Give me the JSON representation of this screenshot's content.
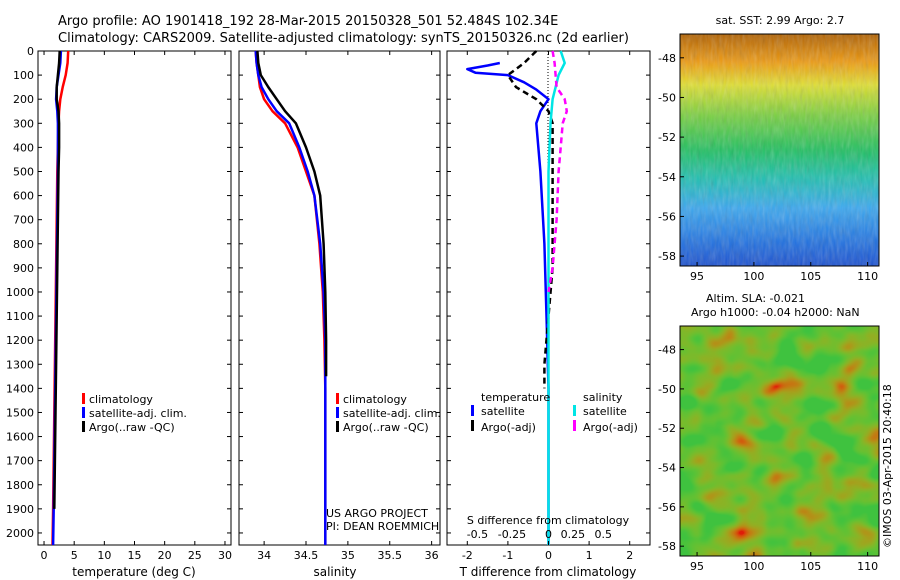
{
  "title_lines": [
    "Argo profile: AO 1901418_192 28-Mar-2015 20150328_501 52.484S 102.34E",
    "Climatology: CARS2009. Satellite-adjusted climatology: synTS_20150326.nc (2d earlier)"
  ],
  "colors": {
    "climatology": "#ff0000",
    "satellite": "#0000ff",
    "argo": "#000000",
    "salinity_satellite": "#00e5e5",
    "salinity_argo": "#ff00ff"
  },
  "depth_axis": {
    "ylim": [
      0,
      2050
    ],
    "ticks": [
      "0",
      "100",
      "200",
      "300",
      "400",
      "500",
      "600",
      "700",
      "800",
      "900",
      "1000",
      "1100",
      "1200",
      "1300",
      "1400",
      "1500",
      "1600",
      "1700",
      "1800",
      "1900",
      "2000"
    ]
  },
  "chart_data": [
    {
      "type": "line",
      "id": "temperature",
      "xlabel": "temperature (deg C)",
      "xlim": [
        -1,
        31
      ],
      "xticks": [
        "0",
        "5",
        "10",
        "15",
        "20",
        "25",
        "30"
      ],
      "legend": [
        "climatology",
        "satellite-adj. clim.",
        "Argo(..raw -QC)"
      ],
      "series": [
        {
          "name": "climatology",
          "color": "#ff0000",
          "x": [
            4.0,
            3.9,
            3.6,
            3.1,
            2.7,
            2.5,
            2.4,
            2.3,
            2.2,
            2.1,
            2.0,
            1.9,
            1.8,
            1.7,
            1.6,
            1.5,
            1.4
          ],
          "y": [
            0,
            50,
            100,
            150,
            200,
            250,
            300,
            400,
            500,
            700,
            900,
            1100,
            1300,
            1500,
            1700,
            1900,
            2050
          ]
        },
        {
          "name": "satellite-adj. clim.",
          "color": "#0000ff",
          "x": [
            2.8,
            2.7,
            2.4,
            2.1,
            2.0,
            2.2,
            2.3,
            2.3,
            2.3,
            2.2,
            2.1,
            2.0,
            1.9,
            1.8,
            1.7,
            1.6,
            1.5
          ],
          "y": [
            0,
            50,
            100,
            150,
            200,
            250,
            300,
            400,
            500,
            700,
            900,
            1100,
            1300,
            1500,
            1700,
            1900,
            2050
          ]
        },
        {
          "name": "Argo(..raw -QC)",
          "color": "#000000",
          "x": [
            2.6,
            2.5,
            2.3,
            2.1,
            2.1,
            2.4,
            2.5,
            2.5,
            2.4,
            2.3,
            2.2,
            2.1,
            2.0,
            1.9,
            1.8,
            1.7
          ],
          "y": [
            0,
            50,
            100,
            150,
            200,
            250,
            300,
            400,
            500,
            700,
            900,
            1100,
            1300,
            1500,
            1700,
            1900
          ]
        }
      ]
    },
    {
      "type": "line",
      "id": "salinity",
      "xlabel": "salinity",
      "xlim": [
        33.7,
        36.1
      ],
      "xticks": [
        "34",
        "34.5",
        "35",
        "35.5",
        "36"
      ],
      "legend": [
        "climatology",
        "satellite-adj. clim.",
        "Argo(..raw -QC)"
      ],
      "series": [
        {
          "name": "climatology",
          "color": "#ff0000",
          "x": [
            33.9,
            33.91,
            33.93,
            33.95,
            34.0,
            34.1,
            34.25,
            34.4,
            34.5,
            34.6,
            34.66,
            34.7,
            34.72,
            34.73,
            34.73,
            34.73,
            34.73,
            34.73
          ],
          "y": [
            0,
            50,
            100,
            150,
            200,
            250,
            300,
            400,
            500,
            600,
            800,
            1000,
            1200,
            1400,
            1600,
            1800,
            1900,
            2050
          ]
        },
        {
          "name": "satellite-adj. clim.",
          "color": "#0000ff",
          "x": [
            33.9,
            33.91,
            33.93,
            33.97,
            34.05,
            34.15,
            34.3,
            34.42,
            34.52,
            34.6,
            34.67,
            34.71,
            34.73,
            34.73,
            34.73,
            34.73,
            34.73,
            34.73
          ],
          "y": [
            0,
            50,
            100,
            150,
            200,
            250,
            300,
            400,
            500,
            600,
            800,
            1000,
            1200,
            1400,
            1600,
            1800,
            1900,
            2050
          ]
        },
        {
          "name": "Argo(..raw -QC)",
          "color": "#000000",
          "x": [
            33.92,
            33.93,
            33.96,
            34.05,
            34.15,
            34.25,
            34.38,
            34.5,
            34.6,
            34.67,
            34.71,
            34.73,
            34.74,
            34.74
          ],
          "y": [
            0,
            50,
            100,
            150,
            200,
            250,
            300,
            400,
            500,
            600,
            800,
            1000,
            1200,
            1350
          ]
        }
      ],
      "annotation": [
        "US ARGO PROJECT",
        "PI: DEAN ROEMMICH"
      ]
    },
    {
      "type": "line",
      "id": "difference",
      "xlabel": "T difference from climatology",
      "xlabel_top": "S difference from climatology",
      "xlim": [
        -2.5,
        2.5
      ],
      "xticks_bottom": [
        "-2",
        "-1",
        "0",
        "1",
        "2"
      ],
      "xticks_top": [
        {
          "label": "-0.5",
          "pos": -1.75
        },
        {
          "label": "-0.25",
          "pos": -0.9
        },
        {
          "label": "0",
          "pos": 0
        },
        {
          "label": "0.25",
          "pos": 0.6
        },
        {
          "label": "0.5",
          "pos": 1.35
        }
      ],
      "legend_groups": [
        {
          "title": "temperature",
          "items": [
            "satellite",
            "Argo(-adj)"
          ]
        },
        {
          "title": "salinity",
          "items": [
            "satellite",
            "Argo(-adj)"
          ]
        }
      ],
      "series": [
        {
          "name": "temperature satellite",
          "color": "#0000ff",
          "x": [
            -1.2,
            -1.5,
            -2.0,
            -1.8,
            -1.0,
            -0.6,
            -0.3,
            0.0,
            -0.2,
            -0.3,
            -0.2,
            -0.1,
            -0.05,
            0.0,
            0.0,
            0.0,
            0.0,
            0.0
          ],
          "y": [
            50,
            60,
            75,
            90,
            100,
            130,
            160,
            200,
            250,
            300,
            500,
            800,
            1100,
            1400,
            1600,
            1800,
            1900,
            2050
          ]
        },
        {
          "name": "temperature Argo(-adj)",
          "color": "#000000",
          "dash": true,
          "x": [
            -0.3,
            -0.6,
            -1.0,
            -0.8,
            -0.3,
            0.0,
            0.1,
            0.1,
            0.1,
            0.1,
            0.1,
            0.0,
            -0.1,
            -0.1
          ],
          "y": [
            0,
            50,
            100,
            150,
            200,
            250,
            300,
            400,
            500,
            700,
            900,
            1100,
            1300,
            1400
          ]
        },
        {
          "name": "salinity satellite",
          "color": "#00e5e5",
          "x": [
            0.3,
            0.4,
            0.25,
            0.1,
            0.05,
            0.0,
            0.0,
            0.0,
            0.0,
            0.0,
            0.0
          ],
          "y": [
            0,
            50,
            100,
            200,
            300,
            500,
            800,
            1100,
            1400,
            1700,
            2050
          ]
        },
        {
          "name": "salinity Argo(-adj)",
          "color": "#ff00ff",
          "dash": true,
          "x": [
            0.1,
            0.15,
            0.2,
            0.4,
            0.45,
            0.35,
            0.3,
            0.25,
            0.2,
            0.1,
            0.0
          ],
          "y": [
            0,
            50,
            150,
            200,
            250,
            300,
            400,
            500,
            700,
            900,
            1000
          ]
        }
      ]
    },
    {
      "type": "heatmap",
      "id": "sst-map",
      "title": "sat. SST: 2.99 Argo: 2.7",
      "xlim": [
        93.5,
        111
      ],
      "ylim": [
        -58.5,
        -46.8
      ],
      "xticks": [
        "95",
        "100",
        "105",
        "110"
      ],
      "yticks": [
        "-48",
        "-50",
        "-52",
        "-54",
        "-56",
        "-58"
      ]
    },
    {
      "type": "heatmap",
      "id": "sla-map",
      "title_lines": [
        "Altim. SLA: -0.021",
        "Argo h1000: -0.04 h2000: NaN"
      ],
      "xlim": [
        93.5,
        111
      ],
      "ylim": [
        -58.5,
        -46.8
      ],
      "xticks": [
        "95",
        "100",
        "105",
        "110"
      ],
      "yticks": [
        "-48",
        "-50",
        "-52",
        "-54",
        "-56",
        "-58"
      ],
      "side_text": "©IMOS 03-Apr-2015 20:40:18"
    }
  ]
}
